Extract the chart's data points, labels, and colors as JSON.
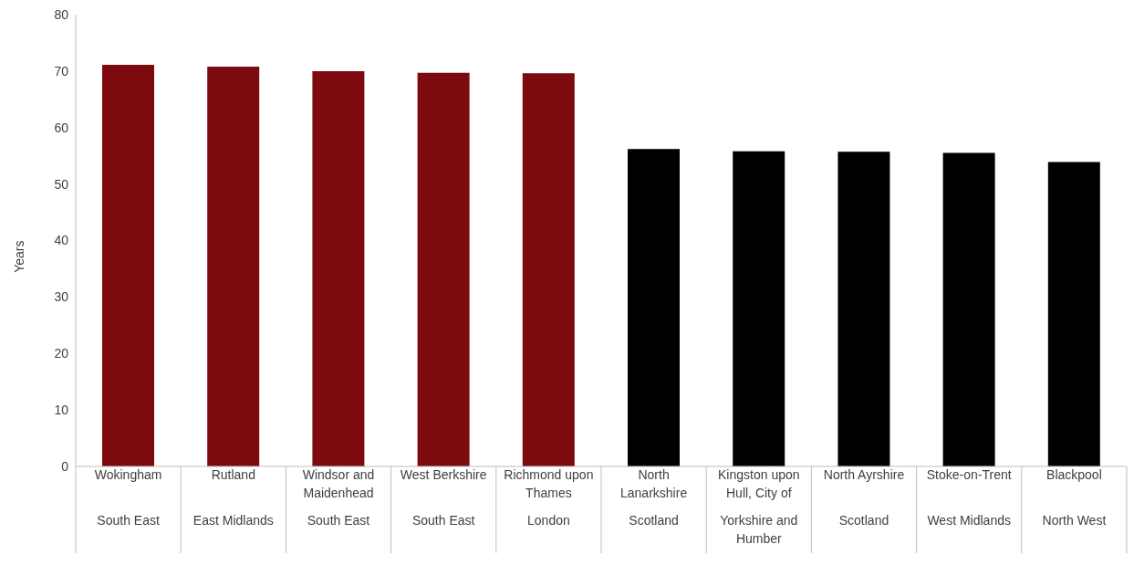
{
  "chart_data": {
    "type": "bar",
    "ylabel": "Years",
    "categories": [
      "Wokingham\nSouth East",
      "Rutland\nEast Midlands",
      "Windsor and Maidenhead\nSouth East",
      "West Berkshire\nSouth East",
      "Richmond upon Thames\nLondon",
      "North Lanarkshire\nScotland",
      "Kingston upon Hull, City of\nYorkshire and Humber",
      "North Ayrshire\nScotland",
      "Stoke-on-Trent\nWest Midlands",
      "Blackpool\nNorth West"
    ],
    "values": [
      71.1,
      70.8,
      70.0,
      69.7,
      69.6,
      56.2,
      55.8,
      55.7,
      55.5,
      53.9
    ],
    "colors": [
      "#7d0a0e",
      "#7d0a0e",
      "#7d0a0e",
      "#7d0a0e",
      "#7d0a0e",
      "#000000",
      "#000000",
      "#000000",
      "#000000",
      "#000000"
    ],
    "ylim": [
      0,
      80
    ],
    "yticks": [
      0,
      10,
      20,
      30,
      40,
      50,
      60,
      70,
      80
    ]
  }
}
